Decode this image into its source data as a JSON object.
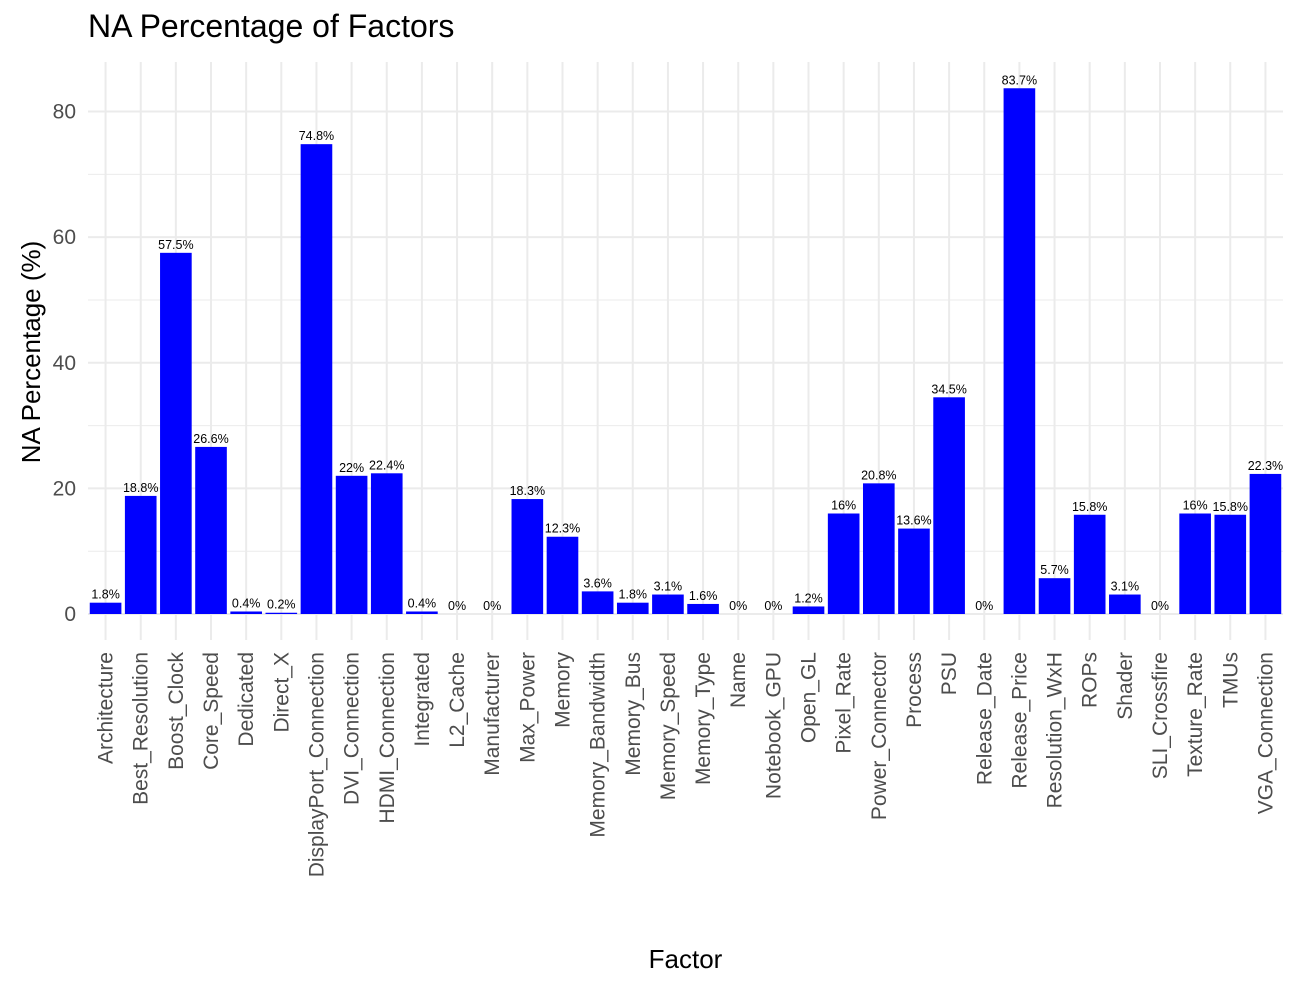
{
  "chart_data": {
    "type": "bar",
    "title": "NA Percentage of Factors",
    "xlabel": "Factor",
    "ylabel": "NA Percentage (%)",
    "ylim": [
      -4,
      88
    ],
    "yticks": [
      0,
      20,
      40,
      60,
      80
    ],
    "grid": true,
    "bar_color": "#0000ff",
    "categories": [
      "Architecture",
      "Best_Resolution",
      "Boost_Clock",
      "Core_Speed",
      "Dedicated",
      "Direct_X",
      "DisplayPort_Connection",
      "DVI_Connection",
      "HDMI_Connection",
      "Integrated",
      "L2_Cache",
      "Manufacturer",
      "Max_Power",
      "Memory",
      "Memory_Bandwidth",
      "Memory_Bus",
      "Memory_Speed",
      "Memory_Type",
      "Name",
      "Notebook_GPU",
      "Open_GL",
      "Pixel_Rate",
      "Power_Connector",
      "Process",
      "PSU",
      "Release_Date",
      "Release_Price",
      "Resolution_WxH",
      "ROPs",
      "Shader",
      "SLI_Crossfire",
      "Texture_Rate",
      "TMUs",
      "VGA_Connection"
    ],
    "values": [
      1.8,
      18.8,
      57.5,
      26.6,
      0.4,
      0.2,
      74.8,
      22,
      22.4,
      0.4,
      0,
      0,
      18.3,
      12.3,
      3.6,
      1.8,
      3.1,
      1.6,
      0,
      0,
      1.2,
      16,
      20.8,
      13.6,
      34.5,
      0,
      83.7,
      5.7,
      15.8,
      3.1,
      0,
      16,
      15.8,
      22.3
    ],
    "data_labels": [
      "1.8%",
      "18.8%",
      "57.5%",
      "26.6%",
      "0.4%",
      "0.2%",
      "74.8%",
      "22%",
      "22.4%",
      "0.4%",
      "0%",
      "0%",
      "18.3%",
      "12.3%",
      "3.6%",
      "1.8%",
      "3.1%",
      "1.6%",
      "0%",
      "0%",
      "1.2%",
      "16%",
      "20.8%",
      "13.6%",
      "34.5%",
      "0%",
      "83.7%",
      "5.7%",
      "15.8%",
      "3.1%",
      "0%",
      "16%",
      "15.8%",
      "22.3%"
    ]
  }
}
